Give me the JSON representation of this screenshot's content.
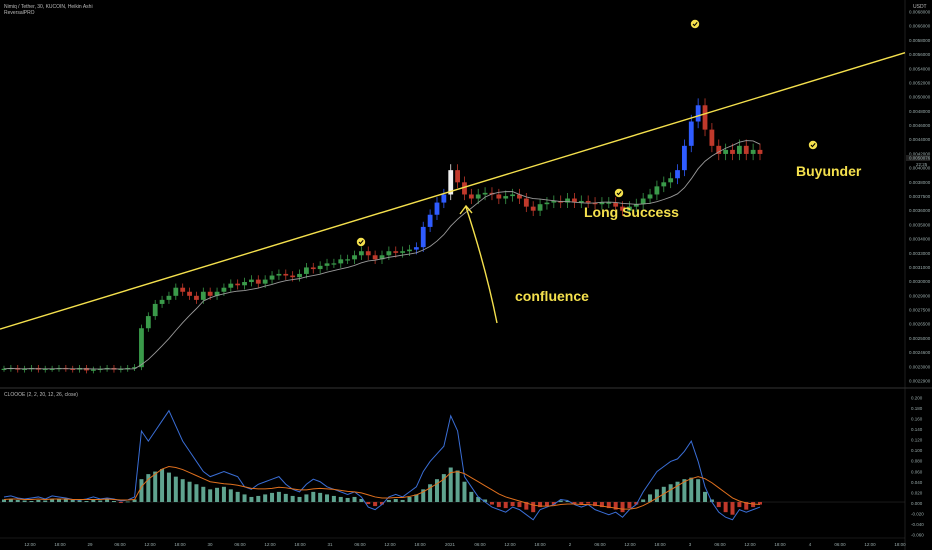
{
  "header": {
    "symbol": "Nimiq / Tether, 30, KUCOIN, Heikin Ashi",
    "indicator": "ReversalPRO",
    "currency": "USDT"
  },
  "sub_header": "CLOOOE (2, 2, 20, 12, 26, close)",
  "price_pane": {
    "y_ticks": [
      "0.0068000",
      "0.0066000",
      "0.0058000",
      "0.0056000",
      "0.0054000",
      "0.0052000",
      "0.0050000",
      "0.0048000",
      "0.0046000",
      "0.0044000",
      "0.0042000",
      "0.0040000",
      "0.0038000",
      "0.0037500",
      "0.0036000",
      "0.0035000",
      "0.0034000",
      "0.0033000",
      "0.0031000",
      "0.0030000",
      "0.0029000",
      "0.0027500",
      "0.0026500",
      "0.0025000",
      "0.0024600",
      "0.0023000",
      "0.0022900"
    ],
    "price_label": "0.0050076",
    "time_label": "22:25"
  },
  "osc_pane": {
    "y_ticks": [
      "0.200",
      "0.180",
      "0.160",
      "0.140",
      "0.120",
      "0.100",
      "0.080",
      "0.060",
      "0.040",
      "0.020",
      "0.000",
      "-0.020",
      "-0.040",
      "-0.060"
    ]
  },
  "x_ticks": [
    "12:00",
    "18:00",
    "29",
    "06:00",
    "12:00",
    "18:00",
    "30",
    "06:00",
    "12:00",
    "18:00",
    "31",
    "06:00",
    "12:00",
    "18:00",
    "2021",
    "06:00",
    "12:00",
    "18:00",
    "2",
    "06:00",
    "12:00",
    "18:00",
    "3",
    "06:00",
    "12:00",
    "18:00",
    "4",
    "06:00",
    "12:00",
    "18:00"
  ],
  "annotations": {
    "confluence": "confluence",
    "long_success": "Long Success",
    "buyunder": "Buyunder"
  },
  "colors": {
    "trendline": "#f4e04d",
    "ma_line": "#9a9a9a",
    "up_candle": "#3a9a4a",
    "down_candle": "#c0392b",
    "strong_up": "#2f5cff",
    "exhaustion": "#f0f0f0",
    "osc_blue": "#3a6ed6",
    "osc_orange": "#e0701e",
    "osc_hist_pos": "#5fa38f",
    "osc_hist_neg": "#c0392b",
    "checkmark": "#f4e04d"
  },
  "chart_data": [
    {
      "type": "candlestick",
      "series": [
        {
          "name": "Nimiq / Tether",
          "values": [
            0.00245,
            0.00246,
            0.00244,
            0.00245,
            0.00246,
            0.00244,
            0.00245,
            0.00245,
            0.00246,
            0.00245,
            0.00244,
            0.00246,
            0.00243,
            0.00244,
            0.00245,
            0.00246,
            0.00244,
            0.00245,
            0.00246,
            0.00247,
            0.00295,
            0.0031,
            0.00325,
            0.0033,
            0.00335,
            0.00345,
            0.0034,
            0.00335,
            0.0033,
            0.0034,
            0.00335,
            0.0034,
            0.00345,
            0.0035,
            0.00348,
            0.00352,
            0.00355,
            0.0035,
            0.00355,
            0.0036,
            0.00362,
            0.0036,
            0.00358,
            0.00362,
            0.0037,
            0.00368,
            0.00372,
            0.00375,
            0.00375,
            0.0038,
            0.0038,
            0.00385,
            0.0039,
            0.00385,
            0.0038,
            0.00385,
            0.0039,
            0.00388,
            0.0039,
            0.00392,
            0.00395,
            0.0042,
            0.00435,
            0.0045,
            0.0046,
            0.0049,
            0.00475,
            0.0046,
            0.00455,
            0.0046,
            0.00462,
            0.0046,
            0.00455,
            0.00458,
            0.0046,
            0.00455,
            0.00445,
            0.0044,
            0.00448,
            0.0045,
            0.00452,
            0.0045,
            0.00455,
            0.0045,
            0.00452,
            0.0045,
            0.00448,
            0.0045,
            0.0045,
            0.00445,
            0.0044,
            0.00445,
            0.00448,
            0.00455,
            0.0046,
            0.0047,
            0.00475,
            0.0048,
            0.0049,
            0.0052,
            0.0055,
            0.0057,
            0.0054,
            0.0052,
            0.0051,
            0.00515,
            0.0051,
            0.0052,
            0.0051,
            0.00515,
            0.0051
          ]
        }
      ],
      "trendline": {
        "name": "",
        "x": [
          0,
          110
        ],
        "y": [
          0.00294,
          0.0058
        ]
      }
    },
    {
      "type": "bar",
      "series": [
        {
          "name": "",
          "values": [
            0.005,
            0.006,
            0.004,
            0.003,
            0.002,
            0.004,
            0.003,
            0.005,
            0.006,
            0.005,
            0.004,
            0.003,
            0.002,
            0.004,
            0.003,
            0.005,
            0.002,
            -0.002,
            0.001,
            0.005,
            0.045,
            0.055,
            0.06,
            0.065,
            0.058,
            0.05,
            0.045,
            0.04,
            0.035,
            0.03,
            0.025,
            0.028,
            0.03,
            0.025,
            0.02,
            0.015,
            0.01,
            0.012,
            0.015,
            0.018,
            0.02,
            0.016,
            0.012,
            0.01,
            0.015,
            0.02,
            0.018,
            0.015,
            0.012,
            0.01,
            0.008,
            0.01,
            0.006,
            -0.004,
            -0.008,
            -0.005,
            0.004,
            0.006,
            0.004,
            0.01,
            0.015,
            0.025,
            0.035,
            0.045,
            0.055,
            0.068,
            0.062,
            0.04,
            0.02,
            0.01,
            0.005,
            -0.005,
            -0.01,
            -0.012,
            -0.008,
            -0.01,
            -0.015,
            -0.02,
            -0.01,
            -0.008,
            -0.005,
            0.003,
            0.002,
            -0.003,
            -0.005,
            -0.003,
            -0.008,
            -0.01,
            -0.012,
            -0.015,
            -0.02,
            -0.012,
            -0.005,
            0.005,
            0.015,
            0.025,
            0.03,
            0.035,
            0.04,
            0.045,
            0.048,
            0.045,
            0.02,
            0.005,
            -0.01,
            -0.02,
            -0.025,
            -0.01,
            -0.015,
            -0.01,
            -0.005
          ]
        },
        {
          "name": "",
          "values": [
            0.01,
            0.012,
            0.008,
            0.006,
            0.008,
            0.01,
            0.006,
            0.012,
            0.01,
            0.008,
            0.005,
            0.004,
            0.006,
            0.01,
            0.006,
            0.008,
            0.006,
            0.002,
            0.004,
            0.01,
            0.14,
            0.12,
            0.14,
            0.16,
            0.18,
            0.15,
            0.12,
            0.1,
            0.08,
            0.06,
            0.05,
            0.055,
            0.06,
            0.055,
            0.05,
            0.03,
            0.025,
            0.035,
            0.04,
            0.045,
            0.05,
            0.035,
            0.025,
            0.02,
            0.035,
            0.045,
            0.04,
            0.03,
            0.025,
            0.02,
            0.015,
            0.02,
            0.01,
            -0.01,
            -0.015,
            -0.005,
            0.01,
            0.015,
            0.01,
            0.02,
            0.03,
            0.06,
            0.08,
            0.095,
            0.11,
            0.17,
            0.14,
            0.05,
            0.03,
            0.01,
            0.0,
            -0.01,
            -0.015,
            -0.02,
            -0.01,
            -0.015,
            -0.025,
            -0.035,
            -0.015,
            -0.01,
            -0.005,
            0.005,
            0.003,
            -0.005,
            -0.01,
            -0.005,
            -0.015,
            -0.02,
            -0.025,
            -0.02,
            -0.03,
            -0.015,
            -0.005,
            0.02,
            0.04,
            0.06,
            0.07,
            0.08,
            0.085,
            0.1,
            0.12,
            0.08,
            0.03,
            0.0,
            -0.02,
            -0.03,
            -0.035,
            -0.015,
            -0.02,
            -0.015,
            -0.01
          ]
        },
        {
          "name": "",
          "values": [
            0.005,
            0.006,
            0.006,
            0.005,
            0.005,
            0.006,
            0.005,
            0.006,
            0.006,
            0.006,
            0.005,
            0.005,
            0.005,
            0.005,
            0.005,
            0.006,
            0.005,
            0.004,
            0.004,
            0.005,
            0.03,
            0.045,
            0.055,
            0.065,
            0.07,
            0.068,
            0.064,
            0.058,
            0.052,
            0.046,
            0.04,
            0.038,
            0.036,
            0.035,
            0.033,
            0.03,
            0.027,
            0.026,
            0.026,
            0.027,
            0.029,
            0.028,
            0.026,
            0.024,
            0.024,
            0.026,
            0.027,
            0.026,
            0.025,
            0.023,
            0.021,
            0.02,
            0.018,
            0.014,
            0.01,
            0.008,
            0.008,
            0.009,
            0.009,
            0.011,
            0.014,
            0.02,
            0.028,
            0.036,
            0.045,
            0.058,
            0.06,
            0.056,
            0.048,
            0.04,
            0.032,
            0.024,
            0.016,
            0.01,
            0.006,
            0.002,
            -0.002,
            -0.006,
            -0.008,
            -0.008,
            -0.007,
            -0.005,
            -0.004,
            -0.004,
            -0.005,
            -0.005,
            -0.006,
            -0.008,
            -0.01,
            -0.012,
            -0.014,
            -0.014,
            -0.012,
            -0.007,
            0.0,
            0.008,
            0.016,
            0.024,
            0.032,
            0.04,
            0.046,
            0.05,
            0.046,
            0.038,
            0.028,
            0.018,
            0.008,
            0.002,
            -0.002,
            -0.004,
            -0.005
          ]
        }
      ]
    }
  ]
}
